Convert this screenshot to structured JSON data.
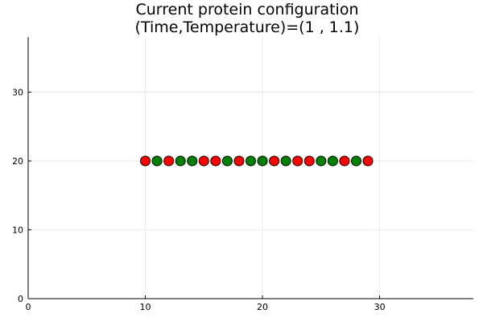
{
  "chart_data": {
    "type": "scatter",
    "title_line1": "Current protein configuration",
    "title_line2": "(Time,Temperature)=(1 , 1.1)",
    "xlabel": "",
    "ylabel": "",
    "xlim": [
      0,
      38
    ],
    "ylim": [
      0,
      38
    ],
    "x_ticks": [
      0,
      10,
      20,
      30
    ],
    "y_ticks": [
      0,
      10,
      20,
      30
    ],
    "grid": true,
    "legend": "none",
    "colors": {
      "red": "#ff0000",
      "green": "#008000",
      "marker_edge": "#000000",
      "grid": "#e6e6e6",
      "axis": "#000000"
    },
    "points": [
      {
        "x": 10,
        "y": 20,
        "color": "red"
      },
      {
        "x": 11,
        "y": 20,
        "color": "green"
      },
      {
        "x": 12,
        "y": 20,
        "color": "red"
      },
      {
        "x": 13,
        "y": 20,
        "color": "green"
      },
      {
        "x": 14,
        "y": 20,
        "color": "green"
      },
      {
        "x": 15,
        "y": 20,
        "color": "red"
      },
      {
        "x": 16,
        "y": 20,
        "color": "red"
      },
      {
        "x": 17,
        "y": 20,
        "color": "green"
      },
      {
        "x": 18,
        "y": 20,
        "color": "red"
      },
      {
        "x": 19,
        "y": 20,
        "color": "green"
      },
      {
        "x": 20,
        "y": 20,
        "color": "green"
      },
      {
        "x": 21,
        "y": 20,
        "color": "red"
      },
      {
        "x": 22,
        "y": 20,
        "color": "green"
      },
      {
        "x": 23,
        "y": 20,
        "color": "red"
      },
      {
        "x": 24,
        "y": 20,
        "color": "red"
      },
      {
        "x": 25,
        "y": 20,
        "color": "green"
      },
      {
        "x": 26,
        "y": 20,
        "color": "green"
      },
      {
        "x": 27,
        "y": 20,
        "color": "red"
      },
      {
        "x": 28,
        "y": 20,
        "color": "green"
      },
      {
        "x": 29,
        "y": 20,
        "color": "red"
      }
    ]
  }
}
